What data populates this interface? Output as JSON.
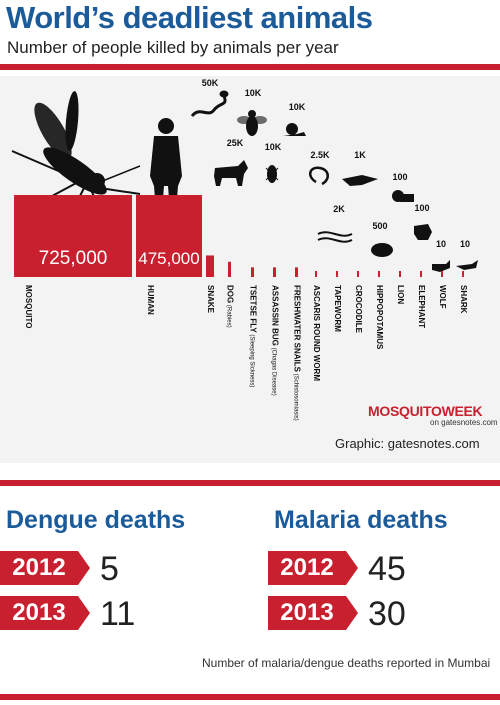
{
  "header": {
    "title": "World’s deadliest animals",
    "subtitle": "Number of people killed by animals per year"
  },
  "chart_data": {
    "type": "bar",
    "title": "World’s deadliest animals",
    "subtitle": "Number of people killed by animals per year",
    "categories": [
      "MOSQUITO",
      "HUMAN",
      "SNAKE",
      "DOG",
      "TSETSE FLY",
      "ASSASSIN BUG",
      "FRESHWATER SNAILS",
      "ASCARIS ROUND WORM",
      "TAPEWORM",
      "CROCODILE",
      "HIPPOPOTAMUS",
      "LION",
      "ELEPHANT",
      "WOLF",
      "SHARK"
    ],
    "notes": [
      "",
      "",
      "",
      "(Rabies)",
      "(Sleeping Sickness)",
      "(Chagas Disease)",
      "(Schistosomiasis)",
      "",
      "",
      "",
      "",
      "",
      "",
      "",
      ""
    ],
    "values": [
      725000,
      475000,
      50000,
      25000,
      10000,
      10000,
      10000,
      2500,
      2000,
      1000,
      500,
      100,
      100,
      10,
      10
    ],
    "value_labels": [
      "725,000",
      "475,000",
      "50K",
      "25K",
      "10K",
      "10K",
      "10K",
      "2.5K",
      "2K",
      "1K",
      "500",
      "100",
      "100",
      "10",
      "10"
    ],
    "icons": [
      "mosquito-icon",
      "human-icon",
      "snake-icon",
      "dog-icon",
      "tsetse-fly-icon",
      "assassin-bug-icon",
      "snail-icon",
      "round-worm-icon",
      "tapeworm-icon",
      "crocodile-icon",
      "hippopotamus-icon",
      "lion-icon",
      "elephant-icon",
      "wolf-icon",
      "shark-icon"
    ],
    "color": "#c8202f"
  },
  "branding": {
    "logo_text": "MOSQUITOWEEK",
    "logo_sub": "on gatesnotes.com",
    "credit": "Graphic: gatesnotes.com"
  },
  "dengue": {
    "title": "Dengue deaths",
    "rows": [
      {
        "year": "2012",
        "value": "5"
      },
      {
        "year": "2013",
        "value": "11"
      }
    ]
  },
  "malaria": {
    "title": "Malaria deaths",
    "rows": [
      {
        "year": "2012",
        "value": "45"
      },
      {
        "year": "2013",
        "value": "30"
      }
    ]
  },
  "footnote": "Number of malaria/dengue deaths reported in Mumbai",
  "colors": {
    "accent_red": "#c8202f",
    "title_blue": "#1c5b9a"
  }
}
